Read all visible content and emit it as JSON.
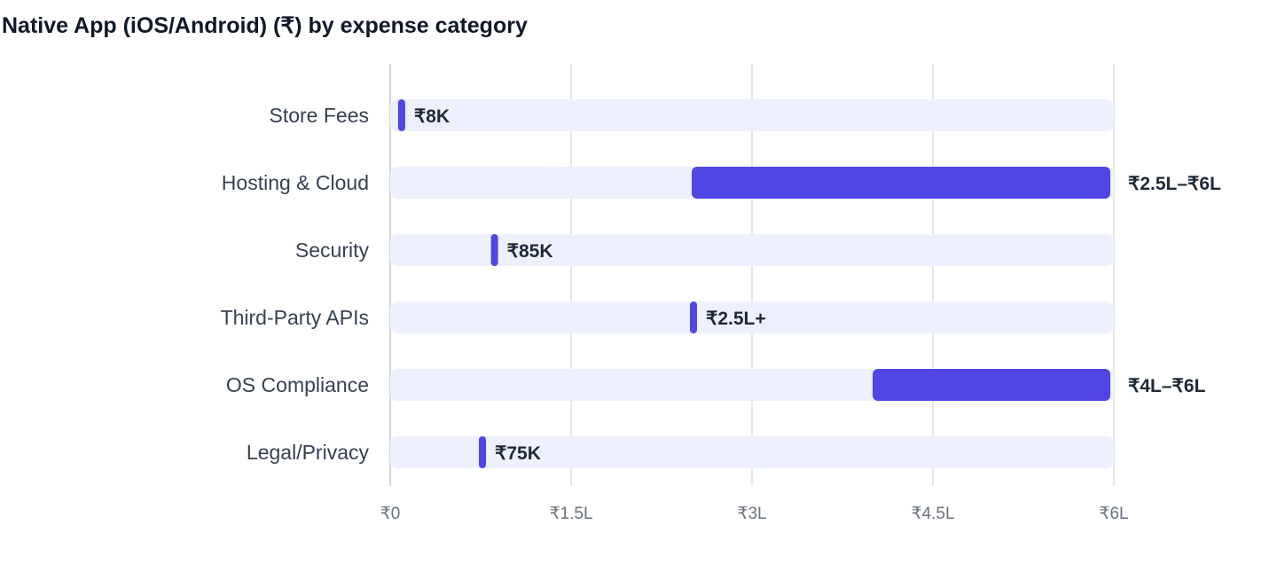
{
  "title": "Native App (iOS/Android) (₹) by expense category",
  "colors": {
    "bar": "#4f46e5",
    "track": "#eef1fd",
    "grid": "#e5e7eb",
    "axis": "#d1d5db"
  },
  "chart_data": {
    "type": "bar",
    "orientation": "horizontal",
    "title": "Native App (iOS/Android) (₹) by expense category",
    "categories": [
      "Store Fees",
      "Hosting & Cloud",
      "Security",
      "Third-Party APIs",
      "OS Compliance",
      "Legal/Privacy"
    ],
    "series": [
      {
        "ranges": [
          [
            8000,
            8000
          ],
          [
            250000,
            600000
          ],
          [
            85000,
            85000
          ],
          [
            250000,
            250000
          ],
          [
            400000,
            600000
          ],
          [
            75000,
            75000
          ]
        ],
        "labels": [
          "₹8K",
          "₹2.5L–₹6L",
          "₹85K",
          "₹2.5L+",
          "₹4L–₹6L",
          "₹75K"
        ]
      }
    ],
    "xlim": [
      0,
      600000
    ],
    "xticks": [
      0,
      150000,
      300000,
      450000,
      600000
    ],
    "xtick_labels": [
      "₹0",
      "₹1.5L",
      "₹3L",
      "₹4.5L",
      "₹6L"
    ],
    "grid": true
  }
}
